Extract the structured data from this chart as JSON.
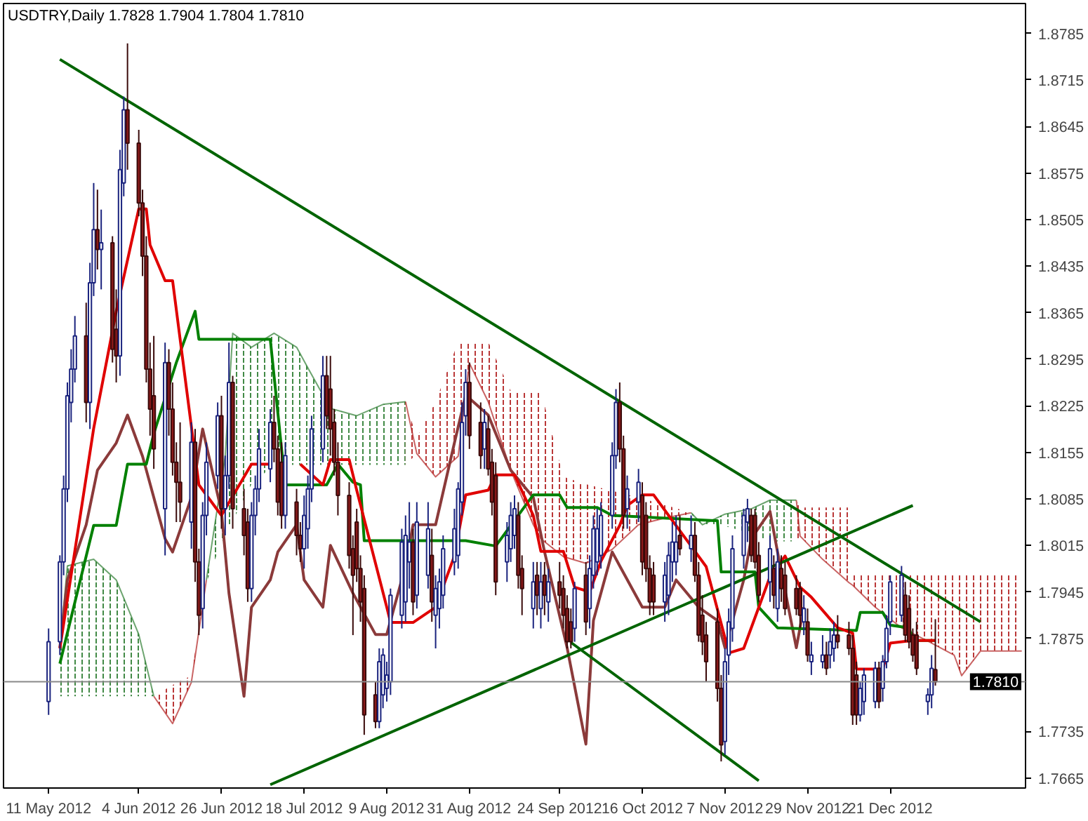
{
  "chart_data": {
    "type": "candlestick",
    "title": "USDTRY,Daily  1.7828 1.7904 1.7804 1.7810",
    "x": [
      "2012-05-11",
      "2012-05-14",
      "2012-05-15",
      "2012-05-16",
      "2012-05-17",
      "2012-05-18",
      "2012-05-21",
      "2012-05-22",
      "2012-05-23",
      "2012-05-24",
      "2012-05-25",
      "2012-05-28",
      "2012-05-29",
      "2012-05-30",
      "2012-05-31",
      "2012-06-01",
      "2012-06-04",
      "2012-06-05",
      "2012-06-06",
      "2012-06-07",
      "2012-06-08",
      "2012-06-11",
      "2012-06-12",
      "2012-06-13",
      "2012-06-14",
      "2012-06-15",
      "2012-06-18",
      "2012-06-19",
      "2012-06-20",
      "2012-06-21",
      "2012-06-22",
      "2012-06-25",
      "2012-06-26",
      "2012-06-27",
      "2012-06-28",
      "2012-06-29",
      "2012-07-02",
      "2012-07-03",
      "2012-07-04",
      "2012-07-05",
      "2012-07-06",
      "2012-07-09",
      "2012-07-10",
      "2012-07-11",
      "2012-07-12",
      "2012-07-13",
      "2012-07-16",
      "2012-07-17",
      "2012-07-18",
      "2012-07-19",
      "2012-07-20",
      "2012-07-23",
      "2012-07-24",
      "2012-07-25",
      "2012-07-26",
      "2012-07-27",
      "2012-07-30",
      "2012-07-31",
      "2012-08-01",
      "2012-08-02",
      "2012-08-03",
      "2012-08-06",
      "2012-08-07",
      "2012-08-08",
      "2012-08-09",
      "2012-08-10",
      "2012-08-13",
      "2012-08-14",
      "2012-08-15",
      "2012-08-16",
      "2012-08-17",
      "2012-08-20",
      "2012-08-21",
      "2012-08-22",
      "2012-08-23",
      "2012-08-24",
      "2012-08-27",
      "2012-08-28",
      "2012-08-29",
      "2012-08-30",
      "2012-08-31",
      "2012-09-03",
      "2012-09-04",
      "2012-09-05",
      "2012-09-06",
      "2012-09-07",
      "2012-09-10",
      "2012-09-11",
      "2012-09-12",
      "2012-09-13",
      "2012-09-14",
      "2012-09-17",
      "2012-09-18",
      "2012-09-19",
      "2012-09-20",
      "2012-09-21",
      "2012-09-24",
      "2012-09-25",
      "2012-09-26",
      "2012-09-27",
      "2012-09-28",
      "2012-10-01",
      "2012-10-02",
      "2012-10-03",
      "2012-10-04",
      "2012-10-05",
      "2012-10-08",
      "2012-10-09",
      "2012-10-10",
      "2012-10-11",
      "2012-10-12",
      "2012-10-15",
      "2012-10-16",
      "2012-10-17",
      "2012-10-18",
      "2012-10-19",
      "2012-10-22",
      "2012-10-23",
      "2012-10-24",
      "2012-10-25",
      "2012-10-26",
      "2012-10-29",
      "2012-10-30",
      "2012-10-31",
      "2012-11-01",
      "2012-11-02",
      "2012-11-05",
      "2012-11-06",
      "2012-11-07",
      "2012-11-08",
      "2012-11-09",
      "2012-11-12",
      "2012-11-13",
      "2012-11-14",
      "2012-11-15",
      "2012-11-16",
      "2012-11-19",
      "2012-11-20",
      "2012-11-21",
      "2012-11-22",
      "2012-11-23",
      "2012-11-26",
      "2012-11-27",
      "2012-11-28",
      "2012-11-29",
      "2012-11-30",
      "2012-12-03",
      "2012-12-04",
      "2012-12-05",
      "2012-12-06",
      "2012-12-07",
      "2012-12-10",
      "2012-12-11",
      "2012-12-12",
      "2012-12-13",
      "2012-12-14",
      "2012-12-17",
      "2012-12-18",
      "2012-12-19",
      "2012-12-20",
      "2012-12-21",
      "2012-12-24",
      "2012-12-25",
      "2012-12-26",
      "2012-12-27",
      "2012-12-28",
      "2012-12-31",
      "2013-01-01",
      "2013-01-02"
    ],
    "ohlc": [
      [
        1.778,
        1.789,
        1.776,
        1.787
      ],
      [
        1.787,
        1.8,
        1.785,
        1.799
      ],
      [
        1.799,
        1.812,
        1.797,
        1.81
      ],
      [
        1.81,
        1.826,
        1.808,
        1.824
      ],
      [
        1.823,
        1.831,
        1.82,
        1.828
      ],
      [
        1.828,
        1.836,
        1.826,
        1.833
      ],
      [
        1.833,
        1.838,
        1.82,
        1.823
      ],
      [
        1.823,
        1.844,
        1.819,
        1.841
      ],
      [
        1.841,
        1.856,
        1.839,
        1.849
      ],
      [
        1.849,
        1.855,
        1.843,
        1.846
      ],
      [
        1.846,
        1.852,
        1.84,
        1.847
      ],
      [
        1.847,
        1.848,
        1.829,
        1.831
      ],
      [
        1.834,
        1.84,
        1.826,
        1.83
      ],
      [
        1.83,
        1.861,
        1.827,
        1.858
      ],
      [
        1.856,
        1.869,
        1.854,
        1.867
      ],
      [
        1.867,
        1.877,
        1.858,
        1.862
      ],
      [
        1.862,
        1.864,
        1.851,
        1.853
      ],
      [
        1.853,
        1.855,
        1.842,
        1.845
      ],
      [
        1.845,
        1.848,
        1.826,
        1.828
      ],
      [
        1.828,
        1.832,
        1.818,
        1.822
      ],
      [
        1.824,
        1.833,
        1.813,
        1.816
      ],
      [
        1.807,
        1.832,
        1.8,
        1.829
      ],
      [
        1.829,
        1.831,
        1.818,
        1.822
      ],
      [
        1.822,
        1.826,
        1.812,
        1.814
      ],
      [
        1.814,
        1.817,
        1.805,
        1.811
      ],
      [
        1.811,
        1.82,
        1.805,
        1.808
      ],
      [
        1.805,
        1.82,
        1.801,
        1.817
      ],
      [
        1.817,
        1.819,
        1.796,
        1.799
      ],
      [
        1.799,
        1.801,
        1.788,
        1.791
      ],
      [
        1.792,
        1.808,
        1.789,
        1.806
      ],
      [
        1.806,
        1.817,
        1.803,
        1.814
      ],
      [
        1.812,
        1.823,
        1.81,
        1.821
      ],
      [
        1.821,
        1.824,
        1.804,
        1.807
      ],
      [
        1.807,
        1.815,
        1.803,
        1.812
      ],
      [
        1.812,
        1.832,
        1.81,
        1.826
      ],
      [
        1.826,
        1.827,
        1.804,
        1.807
      ],
      [
        1.807,
        1.81,
        1.8,
        1.803
      ],
      [
        1.805,
        1.807,
        1.793,
        1.795
      ],
      [
        1.795,
        1.808,
        1.793,
        1.806
      ],
      [
        1.806,
        1.812,
        1.803,
        1.81
      ],
      [
        1.81,
        1.819,
        1.808,
        1.816
      ],
      [
        1.813,
        1.822,
        1.811,
        1.82
      ],
      [
        1.82,
        1.824,
        1.814,
        1.816
      ],
      [
        1.816,
        1.818,
        1.806,
        1.808
      ],
      [
        1.814,
        1.817,
        1.804,
        1.806
      ],
      [
        1.806,
        1.817,
        1.804,
        1.815
      ],
      [
        1.808,
        1.81,
        1.8,
        1.803
      ],
      [
        1.803,
        1.805,
        1.799,
        1.801
      ],
      [
        1.801,
        1.809,
        1.798,
        1.806
      ],
      [
        1.804,
        1.812,
        1.801,
        1.81
      ],
      [
        1.81,
        1.821,
        1.808,
        1.819
      ],
      [
        1.816,
        1.83,
        1.814,
        1.827
      ],
      [
        1.827,
        1.83,
        1.819,
        1.821
      ],
      [
        1.825,
        1.83,
        1.815,
        1.819
      ],
      [
        1.82,
        1.822,
        1.812,
        1.814
      ],
      [
        1.814,
        1.817,
        1.806,
        1.809
      ],
      [
        1.809,
        1.811,
        1.798,
        1.8
      ],
      [
        1.801,
        1.803,
        1.788,
        1.797
      ],
      [
        1.805,
        1.807,
        1.796,
        1.798
      ],
      [
        1.798,
        1.8,
        1.79,
        1.793
      ],
      [
        1.795,
        1.797,
        1.773,
        1.776
      ],
      [
        1.779,
        1.781,
        1.774,
        1.775
      ],
      [
        1.775,
        1.786,
        1.774,
        1.784
      ],
      [
        1.779,
        1.786,
        1.777,
        1.785
      ],
      [
        1.78,
        1.784,
        1.778,
        1.782
      ],
      [
        1.781,
        1.795,
        1.779,
        1.794
      ],
      [
        1.791,
        1.804,
        1.789,
        1.802
      ],
      [
        1.793,
        1.806,
        1.79,
        1.803
      ],
      [
        1.799,
        1.808,
        1.795,
        1.802
      ],
      [
        1.802,
        1.804,
        1.791,
        1.793
      ],
      [
        1.794,
        1.808,
        1.792,
        1.805
      ],
      [
        1.797,
        1.808,
        1.795,
        1.804
      ],
      [
        1.8,
        1.804,
        1.79,
        1.793
      ],
      [
        1.791,
        1.797,
        1.786,
        1.795
      ],
      [
        1.792,
        1.798,
        1.789,
        1.796
      ],
      [
        1.794,
        1.803,
        1.792,
        1.801
      ],
      [
        1.799,
        1.807,
        1.797,
        1.804
      ],
      [
        1.8,
        1.811,
        1.798,
        1.81
      ],
      [
        1.808,
        1.823,
        1.806,
        1.82
      ],
      [
        1.821,
        1.828,
        1.818,
        1.826
      ],
      [
        1.826,
        1.829,
        1.816,
        1.818
      ],
      [
        1.82,
        1.823,
        1.813,
        1.815
      ],
      [
        1.816,
        1.822,
        1.813,
        1.82
      ],
      [
        1.819,
        1.821,
        1.812,
        1.813
      ],
      [
        1.814,
        1.816,
        1.806,
        1.808
      ],
      [
        1.812,
        1.814,
        1.794,
        1.796
      ],
      [
        1.799,
        1.805,
        1.796,
        1.803
      ],
      [
        1.801,
        1.808,
        1.799,
        1.806
      ],
      [
        1.803,
        1.809,
        1.801,
        1.807
      ],
      [
        1.806,
        1.808,
        1.795,
        1.797
      ],
      [
        1.798,
        1.8,
        1.791,
        1.795
      ],
      [
        1.792,
        1.799,
        1.789,
        1.796
      ],
      [
        1.797,
        1.799,
        1.791,
        1.794
      ],
      [
        1.792,
        1.799,
        1.789,
        1.796
      ],
      [
        1.797,
        1.799,
        1.791,
        1.794
      ],
      [
        1.793,
        1.798,
        1.79,
        1.796
      ],
      [
        1.796,
        1.799,
        1.792,
        1.794
      ],
      [
        1.795,
        1.797,
        1.789,
        1.791
      ],
      [
        1.792,
        1.794,
        1.786,
        1.787
      ],
      [
        1.79,
        1.792,
        1.786,
        1.787
      ],
      [
        1.789,
        1.796,
        1.787,
        1.795
      ],
      [
        1.797,
        1.799,
        1.788,
        1.79
      ],
      [
        1.792,
        1.8,
        1.789,
        1.798
      ],
      [
        1.797,
        1.806,
        1.795,
        1.804
      ],
      [
        1.799,
        1.807,
        1.797,
        1.804
      ],
      [
        1.8,
        1.808,
        1.798,
        1.806
      ],
      [
        1.806,
        1.817,
        1.804,
        1.815
      ],
      [
        1.815,
        1.825,
        1.813,
        1.823
      ],
      [
        1.823,
        1.826,
        1.814,
        1.816
      ],
      [
        1.816,
        1.818,
        1.804,
        1.806
      ],
      [
        1.807,
        1.812,
        1.804,
        1.81
      ],
      [
        1.808,
        1.813,
        1.805,
        1.811
      ],
      [
        1.809,
        1.811,
        1.797,
        1.799
      ],
      [
        1.806,
        1.808,
        1.796,
        1.798
      ],
      [
        1.798,
        1.8,
        1.791,
        1.793
      ],
      [
        1.797,
        1.799,
        1.791,
        1.793
      ],
      [
        1.793,
        1.799,
        1.79,
        1.797
      ],
      [
        1.794,
        1.802,
        1.791,
        1.8
      ],
      [
        1.799,
        1.805,
        1.796,
        1.802
      ],
      [
        1.799,
        1.806,
        1.797,
        1.802
      ],
      [
        1.803,
        1.806,
        1.8,
        1.801
      ],
      [
        1.801,
        1.806,
        1.799,
        1.803
      ],
      [
        1.803,
        1.805,
        1.796,
        1.797
      ],
      [
        1.797,
        1.799,
        1.787,
        1.788
      ],
      [
        1.791,
        1.794,
        1.785,
        1.787
      ],
      [
        1.788,
        1.79,
        1.781,
        1.784
      ],
      [
        1.79,
        1.792,
        1.778,
        1.78
      ],
      [
        1.78,
        1.782,
        1.769,
        1.7715
      ],
      [
        1.772,
        1.786,
        1.77,
        1.784
      ],
      [
        1.785,
        1.792,
        1.782,
        1.79
      ],
      [
        1.789,
        1.803,
        1.787,
        1.801
      ],
      [
        1.8,
        1.807,
        1.798,
        1.806
      ],
      [
        1.805,
        1.8085,
        1.802,
        1.807
      ],
      [
        1.806,
        1.807,
        1.799,
        1.8
      ],
      [
        1.806,
        1.807,
        1.798,
        1.799
      ],
      [
        1.8,
        1.802,
        1.793,
        1.794
      ],
      [
        1.796,
        1.803,
        1.793,
        1.801
      ],
      [
        1.798,
        1.8,
        1.792,
        1.794
      ],
      [
        1.792,
        1.801,
        1.79,
        1.799
      ],
      [
        1.798,
        1.8,
        1.793,
        1.795
      ],
      [
        1.797,
        1.799,
        1.791,
        1.792
      ],
      [
        1.795,
        1.797,
        1.791,
        1.792
      ],
      [
        1.795,
        1.796,
        1.789,
        1.791
      ],
      [
        1.79,
        1.794,
        1.788,
        1.792
      ],
      [
        1.79,
        1.792,
        1.784,
        1.785
      ],
      [
        1.784,
        1.787,
        1.782,
        1.785
      ],
      [
        1.784,
        1.788,
        1.783,
        1.785
      ],
      [
        1.785,
        1.787,
        1.782,
        1.783
      ],
      [
        1.785,
        1.789,
        1.783,
        1.787
      ],
      [
        1.786,
        1.79,
        1.784,
        1.788
      ],
      [
        1.788,
        1.791,
        1.786,
        1.787
      ],
      [
        1.788,
        1.79,
        1.785,
        1.786
      ],
      [
        1.786,
        1.788,
        1.7745,
        1.776
      ],
      [
        1.782,
        1.784,
        1.7745,
        1.776
      ],
      [
        1.776,
        1.781,
        1.775,
        1.78
      ],
      [
        1.778,
        1.783,
        1.776,
        1.782
      ],
      [
        1.778,
        1.784,
        1.777,
        1.783
      ],
      [
        1.783,
        1.784,
        1.777,
        1.778
      ],
      [
        1.78,
        1.785,
        1.778,
        1.784
      ],
      [
        1.784,
        1.791,
        1.783,
        1.789
      ],
      [
        1.79,
        1.797,
        1.788,
        1.796
      ],
      [
        1.791,
        1.7984,
        1.79,
        1.797
      ],
      [
        1.794,
        1.796,
        1.787,
        1.788
      ],
      [
        1.792,
        1.794,
        1.786,
        1.787
      ],
      [
        1.788,
        1.789,
        1.784,
        1.785
      ],
      [
        1.788,
        1.79,
        1.782,
        1.783
      ],
      [
        1.778,
        1.78,
        1.776,
        1.779
      ],
      [
        1.779,
        1.785,
        1.777,
        1.783
      ],
      [
        1.7828,
        1.7904,
        1.7804,
        1.781
      ]
    ],
    "xlim": [
      "2012-04-29",
      "2013-01-26"
    ],
    "ylim": [
      1.765,
      1.883
    ],
    "xticks": [
      {
        "value": "2012-05-11",
        "label": "11 May 2012"
      },
      {
        "value": "2012-06-04",
        "label": "4 Jun 2012"
      },
      {
        "value": "2012-06-26",
        "label": "26 Jun 2012"
      },
      {
        "value": "2012-07-18",
        "label": "18 Jul 2012"
      },
      {
        "value": "2012-08-09",
        "label": "9 Aug 2012"
      },
      {
        "value": "2012-08-31",
        "label": "31 Aug 2012"
      },
      {
        "value": "2012-09-24",
        "label": "24 Sep 2012"
      },
      {
        "value": "2012-10-16",
        "label": "16 Oct 2012"
      },
      {
        "value": "2012-11-07",
        "label": "7 Nov 2012"
      },
      {
        "value": "2012-11-29",
        "label": "29 Nov 2012"
      },
      {
        "value": "2012-12-21",
        "label": "21 Dec 2012"
      }
    ],
    "yticks": [
      1.7665,
      1.7735,
      1.7875,
      1.7945,
      1.8015,
      1.8085,
      1.8155,
      1.8225,
      1.8295,
      1.8365,
      1.8435,
      1.8505,
      1.8575,
      1.8645,
      1.8715,
      1.8785
    ],
    "ref_lines": [
      {
        "axis": "y",
        "value": 1.781,
        "label": "1.7810",
        "color": "#8a8a8a"
      }
    ],
    "series": [
      {
        "type": "line",
        "color": "#2e7d32",
        "x": [
          "2012-05-14",
          "2012-05-16",
          "2012-05-23",
          "2012-05-29",
          "2012-06-04",
          "2012-06-08"
        ],
        "values": [
          1.786,
          1.7984,
          1.7994,
          1.7963,
          1.7881,
          1.7788
        ],
        "lower": [
          1.7788,
          1.7788,
          1.7788,
          1.7788,
          1.7788,
          1.7788
        ],
        "upper": [
          1.786,
          1.7984,
          1.7994,
          1.7963,
          1.7881,
          1.7788
        ]
      },
      {
        "type": "line",
        "color": "#b22222",
        "x": [
          "2012-06-08",
          "2012-06-13",
          "2012-06-18",
          "2012-06-22"
        ],
        "values": [
          1.7788,
          1.7747,
          1.7809,
          1.7963
        ],
        "lower": [
          1.7788,
          1.7747,
          1.7809,
          1.7959
        ],
        "upper": [
          1.7788,
          1.7805,
          1.7819,
          1.7963
        ]
      },
      {
        "type": "line",
        "color": "#2e7d32",
        "x": [
          "2012-06-22",
          "2012-06-27",
          "2012-06-29",
          "2012-07-04",
          "2012-07-10",
          "2012-07-16",
          "2012-07-19",
          "2012-07-25",
          "2012-08-01",
          "2012-08-08",
          "2012-08-14"
        ],
        "values": [
          1.7963,
          1.8149,
          1.8334,
          1.8313,
          1.8334,
          1.8313,
          1.8282,
          1.8221,
          1.821,
          1.8227,
          1.8231
        ],
        "lower": [
          1.7959,
          1.8035,
          1.8052,
          1.8107,
          1.8136,
          1.8136,
          1.8136,
          1.8136,
          1.8136,
          1.8136,
          1.8136
        ],
        "upper": [
          1.7963,
          1.8149,
          1.8334,
          1.8313,
          1.8334,
          1.8313,
          1.8282,
          1.8221,
          1.821,
          1.8227,
          1.8231
        ]
      },
      {
        "type": "line",
        "color": "#b22222",
        "x": [
          "2012-08-14",
          "2012-08-17",
          "2012-08-22",
          "2012-08-28",
          "2012-08-31",
          "2012-09-05",
          "2012-09-11",
          "2012-09-17",
          "2012-09-19",
          "2012-09-25",
          "2012-10-01",
          "2012-10-08",
          "2012-10-15",
          "2012-10-22",
          "2012-10-29"
        ],
        "values": [
          1.8231,
          1.8153,
          1.8118,
          1.8149,
          1.8289,
          1.8231,
          1.8128,
          1.8046,
          1.8025,
          1.7998,
          1.7988,
          1.8009,
          1.8046,
          1.8056,
          1.8064
        ],
        "lower": [
          1.8136,
          1.8153,
          1.8118,
          1.8149,
          1.8289,
          1.8231,
          1.8128,
          1.8046,
          1.8025,
          1.7998,
          1.7988,
          1.8009,
          1.8046,
          1.8056,
          1.8062
        ],
        "upper": [
          1.8231,
          1.8177,
          1.8231,
          1.8321,
          1.8321,
          1.8321,
          1.8247,
          1.8247,
          1.8247,
          1.8118,
          1.8107,
          1.8097,
          1.8087,
          1.8076,
          1.8064
        ]
      },
      {
        "type": "line",
        "color": "#2e7d32",
        "x": [
          "2012-10-29",
          "2012-11-01",
          "2012-11-07",
          "2012-11-14",
          "2012-11-19",
          "2012-11-26"
        ],
        "values": [
          1.8064,
          1.8046,
          1.8062,
          1.807,
          1.8083,
          1.8083
        ],
        "lower": [
          1.8062,
          1.8046,
          1.8044,
          1.8033,
          1.8021,
          1.8021
        ],
        "upper": [
          1.8064,
          1.805,
          1.8062,
          1.807,
          1.8083,
          1.8083
        ]
      },
      {
        "type": "line",
        "color": "#b22222",
        "x": [
          "2012-11-26",
          "2012-11-27",
          "2012-12-03",
          "2012-12-10",
          "2012-12-11",
          "2012-12-17",
          "2012-12-24",
          "2012-12-31",
          "2013-01-07",
          "2013-01-09",
          "2013-01-14",
          "2013-01-21",
          "2013-01-25"
        ],
        "values": [
          1.8083,
          1.8029,
          1.7994,
          1.7959,
          1.7955,
          1.7922,
          1.7891,
          1.7871,
          1.785,
          1.7819,
          1.7856,
          1.7856,
          1.7856
        ],
        "lower": [
          1.8021,
          1.8029,
          1.7994,
          1.7959,
          1.7955,
          1.7922,
          1.7891,
          1.7871,
          1.785,
          1.7819,
          1.7856,
          1.7856,
          1.7856
        ],
        "upper": [
          1.8083,
          1.8072,
          1.8072,
          1.8072,
          1.7971,
          1.7971,
          1.7971,
          1.7971,
          1.7971,
          1.7971,
          1.7971,
          1.7971,
          1.7971
        ]
      },
      {
        "type": "line",
        "color": "#8b3a3a",
        "x": [
          "2012-05-14",
          "2012-05-16",
          "2012-05-21",
          "2012-05-24",
          "2012-05-29",
          "2012-06-01",
          "2012-06-05",
          "2012-06-11",
          "2012-06-13",
          "2012-06-18",
          "2012-06-21",
          "2012-06-26",
          "2012-06-28",
          "2012-07-02",
          "2012-07-04",
          "2012-07-09",
          "2012-07-11",
          "2012-07-16",
          "2012-07-18",
          "2012-07-23",
          "2012-07-25",
          "2012-07-31",
          "2012-08-06",
          "2012-08-09",
          "2012-08-14",
          "2012-08-16",
          "2012-08-22",
          "2012-08-27",
          "2012-08-30",
          "2012-09-05",
          "2012-09-11",
          "2012-09-17",
          "2012-09-20",
          "2012-09-26",
          "2012-10-01",
          "2012-10-03",
          "2012-10-08",
          "2012-10-10",
          "2012-10-16",
          "2012-10-22",
          "2012-10-25",
          "2012-10-31",
          "2012-11-05",
          "2012-11-07",
          "2012-11-12",
          "2012-11-14",
          "2012-11-19",
          "2012-11-21",
          "2012-11-26",
          "2012-11-28"
        ],
        "values": [
          1.7861,
          1.7963,
          1.8046,
          1.8128,
          1.8169,
          1.8211,
          1.8149,
          1.8025,
          1.8005,
          1.8087,
          1.819,
          1.8066,
          1.7943,
          1.7788,
          1.7922,
          1.7963,
          1.8005,
          1.8046,
          1.7963,
          1.7922,
          1.8015,
          1.7943,
          1.7881,
          1.7881,
          1.7984,
          1.8046,
          1.8046,
          1.8169,
          1.8241,
          1.8211,
          1.8128,
          1.8087,
          1.8005,
          1.7861,
          1.7716,
          1.7902,
          1.8005,
          1.7984,
          1.7922,
          1.7922,
          1.7963,
          1.7922,
          1.7902,
          1.7861,
          1.7963,
          1.8025,
          1.8066,
          1.8005,
          1.7861,
          1.7922
        ]
      },
      {
        "type": "line",
        "color": "#008000",
        "x": [
          "2012-05-14",
          "2012-05-23",
          "2012-05-29",
          "2012-06-01",
          "2012-06-06",
          "2012-06-08",
          "2012-06-14",
          "2012-06-19",
          "2012-06-20",
          "2012-07-09",
          "2012-07-12",
          "2012-07-13",
          "2012-07-24",
          "2012-07-27",
          "2012-07-31",
          "2012-08-02",
          "2012-08-03",
          "2012-08-30",
          "2012-09-07",
          "2012-09-17",
          "2012-09-24",
          "2012-09-26",
          "2012-10-04",
          "2012-10-08",
          "2012-11-05",
          "2012-11-06",
          "2012-11-15",
          "2012-11-16",
          "2012-11-21",
          "2012-12-12",
          "2012-12-13",
          "2012-12-19",
          "2012-12-21",
          "2012-12-26",
          "2012-12-27",
          "2013-01-02"
        ],
        "values": [
          1.7837,
          1.8045,
          1.8045,
          1.8137,
          1.8137,
          1.8183,
          1.829,
          1.8367,
          1.8325,
          1.8325,
          1.816,
          1.8106,
          1.8106,
          1.8137,
          1.811,
          1.8106,
          1.8022,
          1.8022,
          1.8014,
          1.8091,
          1.8091,
          1.8072,
          1.8072,
          1.806,
          1.8052,
          1.7975,
          1.7975,
          1.7922,
          1.7891,
          1.7887,
          1.7914,
          1.7914,
          1.7895,
          1.7891,
          1.7872,
          1.7872
        ]
      },
      {
        "type": "line",
        "color": "#e00000",
        "x": [
          "2012-05-14",
          "2012-05-23",
          "2012-05-29",
          "2012-06-04",
          "2012-06-06",
          "2012-06-07",
          "2012-06-11",
          "2012-06-13",
          "2012-06-20",
          "2012-06-26",
          "2012-07-04",
          "2012-07-09",
          "2012-07-12",
          "2012-07-17",
          "2012-07-23",
          "2012-07-25",
          "2012-07-30",
          "2012-08-01",
          "2012-08-09",
          "2012-08-10",
          "2012-08-16",
          "2012-08-22",
          "2012-08-27",
          "2012-08-30",
          "2012-09-05",
          "2012-09-07",
          "2012-09-12",
          "2012-09-17",
          "2012-09-19",
          "2012-09-25",
          "2012-09-28",
          "2012-10-02",
          "2012-10-05",
          "2012-10-10",
          "2012-10-12",
          "2012-10-16",
          "2012-10-19",
          "2012-10-23",
          "2012-10-29",
          "2012-11-02",
          "2012-11-07",
          "2012-11-08",
          "2012-11-12",
          "2012-11-19",
          "2012-11-23",
          "2012-11-27",
          "2012-11-30",
          "2012-12-07",
          "2012-12-11",
          "2012-12-12",
          "2012-12-19",
          "2012-12-21",
          "2012-12-27",
          "2013-01-02"
        ],
        "values": [
          1.786,
          1.8191,
          1.8367,
          1.8521,
          1.8521,
          1.8467,
          1.8413,
          1.8413,
          1.8106,
          1.806,
          1.8137,
          1.8137,
          null,
          1.8137,
          1.8106,
          1.8144,
          1.8144,
          1.8098,
          1.7922,
          1.7899,
          1.7899,
          1.7922,
          1.7999,
          1.8091,
          1.8098,
          1.8121,
          1.8121,
          1.806,
          1.8006,
          1.8006,
          1.7952,
          1.7945,
          1.7991,
          1.8045,
          1.8075,
          1.8091,
          1.8091,
          1.806,
          1.8014,
          1.7983,
          1.7876,
          1.7853,
          1.786,
          1.7968,
          1.7999,
          1.7952,
          1.7937,
          1.7891,
          1.7883,
          1.7829,
          1.7829,
          1.7868,
          1.7872,
          1.7872
        ]
      },
      {
        "type": "line",
        "color": "#006400",
        "x": [
          "2012-05-14",
          "2013-01-14"
        ],
        "values": [
          1.8746,
          1.79
        ]
      },
      {
        "type": "line",
        "color": "#006400",
        "x": [
          "2012-07-09",
          "2012-12-27"
        ],
        "values": [
          1.7655,
          1.8075
        ]
      },
      {
        "type": "line",
        "color": "#006400",
        "x": [
          "2012-09-27",
          "2012-11-16"
        ],
        "values": [
          1.7869,
          1.7661
        ]
      }
    ],
    "grid": false
  }
}
